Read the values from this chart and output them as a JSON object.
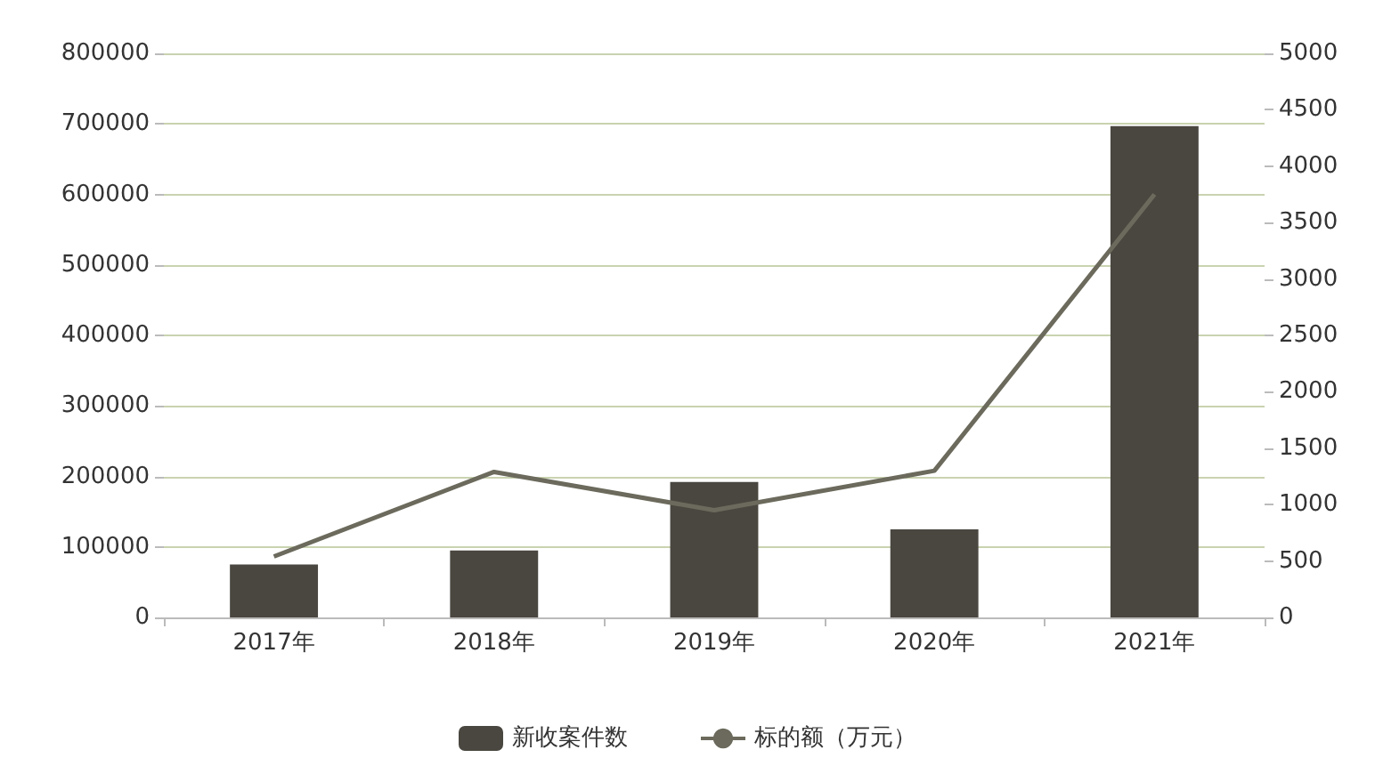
{
  "chart_data": {
    "type": "bar",
    "categories": [
      "2017年",
      "2018年",
      "2019年",
      "2020年",
      "2021年"
    ],
    "series": [
      {
        "name": "新收案件数",
        "color": "#4a4740",
        "values": [
          75000,
          95000,
          192000,
          125000,
          697000
        ]
      },
      {
        "name": "标的额（万元）",
        "type": "line",
        "axis": "y2",
        "color": "#6b6a5c",
        "values": [
          540,
          1290,
          950,
          1300,
          3750
        ]
      }
    ],
    "ylim": [
      0,
      800000
    ],
    "yticks": [
      0,
      100000,
      200000,
      300000,
      400000,
      500000,
      600000,
      700000,
      800000
    ],
    "y2lim": [
      0,
      5000
    ],
    "y2ticks": [
      0,
      500,
      1000,
      1500,
      2000,
      2500,
      3000,
      3500,
      4000,
      4500,
      5000
    ],
    "grid": "y",
    "legend": "bottom",
    "marker": "none",
    "line_style": "solid"
  }
}
